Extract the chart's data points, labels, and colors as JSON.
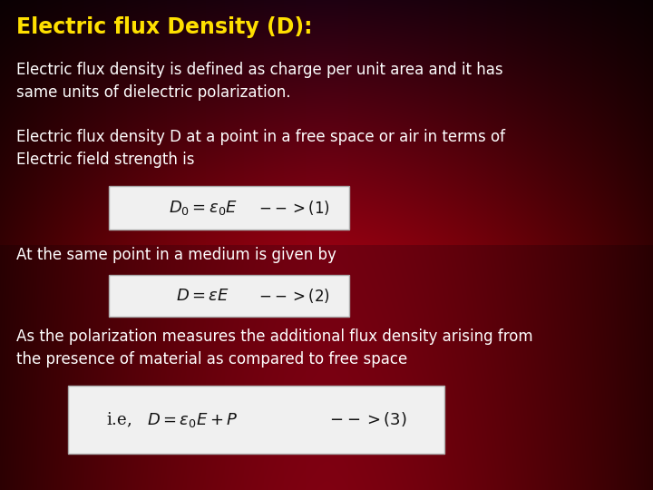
{
  "title": "Electric flux Density (D):",
  "title_color": "#FFE000",
  "title_fontsize": 17,
  "text_color": "#ffffff",
  "body_fontsize": 12,
  "eq_fontsize": 13,
  "para1": "Electric flux density is defined as charge per unit area and it has\nsame units of dielectric polarization.",
  "para2": "Electric flux density D at a point in a free space or air in terms of\nElectric field strength is",
  "eq1_math": "$D_0 = \\varepsilon_0 E$",
  "eq1_arrow": "$\\mathrm{-- >(1)}$",
  "para3": "At the same point in a medium is given by",
  "eq2_math": "$D = \\varepsilon E$",
  "eq2_arrow": "$\\mathrm{-- >(2)}$",
  "para4": "As the polarization measures the additional flux density arising from\nthe presence of material as compared to free space",
  "eq3_text": "i.e,   $D = \\varepsilon_0 E + P$                  $\\mathrm{-- >(3)}$",
  "box_facecolor": "#f0f0f0",
  "box_edgecolor": "#aaaaaa"
}
